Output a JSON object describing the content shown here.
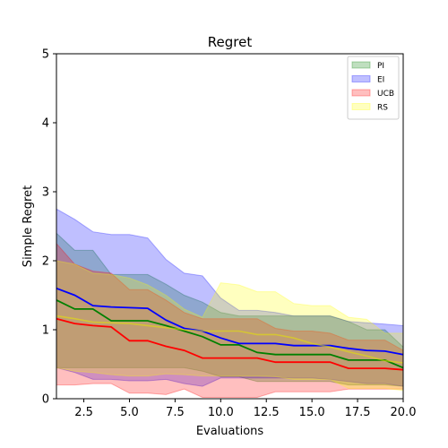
{
  "chart_data": {
    "type": "line",
    "title": "Regret",
    "xlabel": "Evaluations",
    "ylabel": "Simple Regret",
    "xlim": [
      1,
      20
    ],
    "ylim": [
      0,
      5
    ],
    "x_ticks": [
      2.5,
      5.0,
      7.5,
      10.0,
      12.5,
      15.0,
      17.5,
      20.0
    ],
    "y_ticks": [
      0,
      1,
      2,
      3,
      4,
      5
    ],
    "grid": false,
    "legend_position": "top-right",
    "x": [
      1,
      2,
      3,
      4,
      5,
      6,
      7,
      8,
      9,
      10,
      11,
      12,
      13,
      14,
      15,
      16,
      17,
      18,
      19,
      20
    ],
    "series": [
      {
        "name": "PI",
        "line_color": "#008000",
        "fill_color": "#008000",
        "mean": [
          1.43,
          1.3,
          1.3,
          1.13,
          1.13,
          1.13,
          1.06,
          0.98,
          0.9,
          0.78,
          0.78,
          0.67,
          0.64,
          0.64,
          0.64,
          0.64,
          0.56,
          0.56,
          0.56,
          0.45
        ],
        "upper": [
          2.4,
          2.15,
          2.15,
          1.8,
          1.8,
          1.8,
          1.66,
          1.5,
          1.4,
          1.25,
          1.2,
          1.2,
          1.2,
          1.2,
          1.2,
          1.2,
          1.12,
          1.0,
          1.0,
          0.75
        ],
        "lower": [
          0.45,
          0.45,
          0.45,
          0.45,
          0.45,
          0.45,
          0.45,
          0.45,
          0.4,
          0.32,
          0.32,
          0.25,
          0.25,
          0.25,
          0.25,
          0.25,
          0.2,
          0.2,
          0.2,
          0.18
        ]
      },
      {
        "name": "EI",
        "line_color": "#0000ff",
        "fill_color": "#0000ff",
        "mean": [
          1.6,
          1.5,
          1.35,
          1.33,
          1.32,
          1.31,
          1.14,
          1.02,
          0.98,
          0.88,
          0.8,
          0.8,
          0.8,
          0.77,
          0.77,
          0.77,
          0.73,
          0.7,
          0.69,
          0.64
        ],
        "upper": [
          2.75,
          2.6,
          2.42,
          2.38,
          2.38,
          2.33,
          2.02,
          1.82,
          1.78,
          1.46,
          1.28,
          1.28,
          1.25,
          1.2,
          1.2,
          1.2,
          1.12,
          1.1,
          1.08,
          1.06
        ],
        "lower": [
          0.45,
          0.38,
          0.28,
          0.28,
          0.26,
          0.26,
          0.28,
          0.22,
          0.18,
          0.3,
          0.3,
          0.3,
          0.3,
          0.3,
          0.3,
          0.28,
          0.25,
          0.22,
          0.22,
          0.18
        ]
      },
      {
        "name": "UCB",
        "line_color": "#ff0000",
        "fill_color": "#ff0000",
        "mean": [
          1.16,
          1.09,
          1.06,
          1.04,
          0.84,
          0.84,
          0.76,
          0.7,
          0.59,
          0.59,
          0.59,
          0.59,
          0.53,
          0.53,
          0.53,
          0.53,
          0.44,
          0.44,
          0.44,
          0.42
        ],
        "upper": [
          2.25,
          1.95,
          1.85,
          1.82,
          1.58,
          1.58,
          1.43,
          1.25,
          1.16,
          1.16,
          1.16,
          1.16,
          1.02,
          0.98,
          0.98,
          0.95,
          0.85,
          0.85,
          0.85,
          0.7
        ],
        "lower": [
          0.2,
          0.2,
          0.22,
          0.22,
          0.08,
          0.08,
          0.06,
          0.14,
          0.02,
          0.02,
          0.02,
          0.02,
          0.1,
          0.1,
          0.1,
          0.1,
          0.14,
          0.14,
          0.14,
          0.14
        ]
      },
      {
        "name": "RS",
        "line_color": "#e6e600",
        "fill_color": "#ffff00",
        "mean": [
          1.2,
          1.16,
          1.11,
          1.1,
          1.09,
          1.06,
          1.03,
          1.0,
          0.98,
          0.98,
          0.98,
          0.93,
          0.93,
          0.88,
          0.8,
          0.75,
          0.68,
          0.62,
          0.55,
          0.52
        ],
        "upper": [
          2.0,
          1.95,
          1.82,
          1.8,
          1.75,
          1.65,
          1.5,
          1.3,
          1.18,
          1.68,
          1.65,
          1.55,
          1.55,
          1.38,
          1.35,
          1.35,
          1.18,
          1.15,
          0.95,
          0.95
        ],
        "lower": [
          0.45,
          0.4,
          0.38,
          0.35,
          0.33,
          0.33,
          0.36,
          0.35,
          0.33,
          0.33,
          0.33,
          0.33,
          0.32,
          0.28,
          0.28,
          0.28,
          0.15,
          0.15,
          0.15,
          0.12
        ]
      }
    ]
  }
}
